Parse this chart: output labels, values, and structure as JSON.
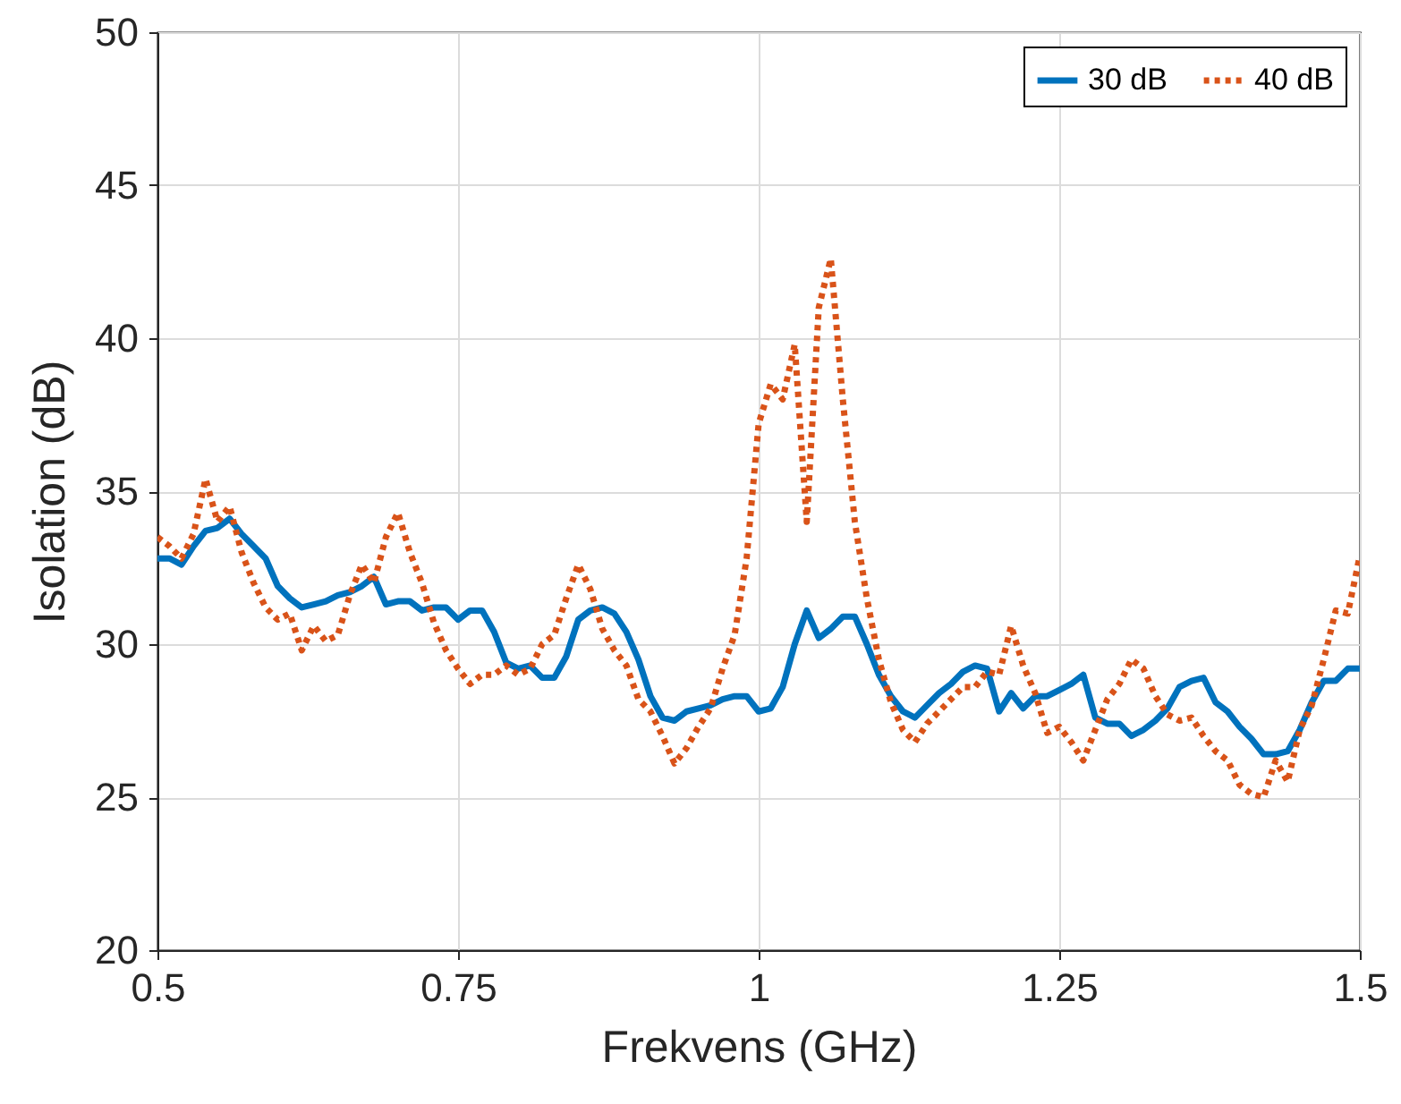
{
  "chart_data": {
    "type": "line",
    "xlabel": "Frekvens (GHz)",
    "ylabel": "Isolation (dB)",
    "x": [
      0.5,
      0.51,
      0.52,
      0.53,
      0.54,
      0.55,
      0.56,
      0.57,
      0.58,
      0.59,
      0.6,
      0.61,
      0.62,
      0.63,
      0.64,
      0.65,
      0.66,
      0.67,
      0.68,
      0.69,
      0.7,
      0.71,
      0.72,
      0.73,
      0.74,
      0.75,
      0.76,
      0.77,
      0.78,
      0.79,
      0.8,
      0.81,
      0.82,
      0.83,
      0.84,
      0.85,
      0.86,
      0.87,
      0.88,
      0.89,
      0.9,
      0.91,
      0.92,
      0.93,
      0.94,
      0.95,
      0.96,
      0.97,
      0.98,
      0.99,
      1.0,
      1.01,
      1.02,
      1.03,
      1.04,
      1.05,
      1.06,
      1.07,
      1.08,
      1.09,
      1.1,
      1.11,
      1.12,
      1.13,
      1.14,
      1.15,
      1.16,
      1.17,
      1.18,
      1.19,
      1.2,
      1.21,
      1.22,
      1.23,
      1.24,
      1.25,
      1.26,
      1.27,
      1.28,
      1.29,
      1.3,
      1.31,
      1.32,
      1.33,
      1.34,
      1.35,
      1.36,
      1.37,
      1.38,
      1.39,
      1.4,
      1.41,
      1.42,
      1.43,
      1.44,
      1.45,
      1.46,
      1.47,
      1.48,
      1.49,
      1.5
    ],
    "series": [
      {
        "name": "30 dB",
        "color": "#0072bd",
        "line_style": "solid",
        "values": [
          32.8,
          32.8,
          32.6,
          33.2,
          33.7,
          33.8,
          34.1,
          33.6,
          33.2,
          32.8,
          31.9,
          31.5,
          31.2,
          31.3,
          31.4,
          31.6,
          31.7,
          31.9,
          32.2,
          31.3,
          31.4,
          31.4,
          31.1,
          31.2,
          31.2,
          30.8,
          31.1,
          31.1,
          30.4,
          29.4,
          29.2,
          29.3,
          28.9,
          28.9,
          29.6,
          30.8,
          31.1,
          31.2,
          31.0,
          30.4,
          29.5,
          28.3,
          27.6,
          27.5,
          27.8,
          27.9,
          28.0,
          28.2,
          28.3,
          28.3,
          27.8,
          27.9,
          28.6,
          30.0,
          31.1,
          30.2,
          30.5,
          30.9,
          30.9,
          30.0,
          29.0,
          28.3,
          27.8,
          27.6,
          28.0,
          28.4,
          28.7,
          29.1,
          29.3,
          29.2,
          27.8,
          28.4,
          27.9,
          28.3,
          28.3,
          28.5,
          28.7,
          29.0,
          27.6,
          27.4,
          27.4,
          27.0,
          27.2,
          27.5,
          27.9,
          28.6,
          28.8,
          28.9,
          28.1,
          27.8,
          27.3,
          26.9,
          26.4,
          26.4,
          26.5,
          27.2,
          28.1,
          28.8,
          28.8,
          29.2,
          29.2
        ]
      },
      {
        "name": "40 dB",
        "color": "#d95319",
        "line_style": "dotted",
        "values": [
          33.5,
          33.2,
          32.8,
          33.6,
          35.4,
          34.0,
          34.5,
          33.0,
          32.0,
          31.2,
          30.8,
          31.0,
          29.8,
          30.6,
          30.1,
          30.3,
          31.6,
          32.6,
          32.0,
          33.5,
          34.3,
          33.0,
          32.0,
          30.7,
          29.8,
          29.2,
          28.7,
          29.0,
          29.0,
          29.3,
          29.0,
          29.2,
          30.0,
          30.3,
          31.5,
          32.6,
          31.8,
          30.5,
          29.8,
          29.3,
          28.2,
          27.8,
          27.0,
          26.1,
          26.6,
          27.3,
          27.9,
          29.2,
          30.3,
          32.8,
          37.2,
          38.5,
          38.0,
          39.8,
          34.0,
          41.0,
          42.6,
          38.0,
          34.0,
          31.5,
          29.5,
          28.1,
          27.2,
          26.8,
          27.4,
          27.8,
          28.2,
          28.6,
          28.6,
          29.1,
          29.0,
          30.6,
          29.3,
          28.4,
          27.1,
          27.3,
          26.8,
          26.2,
          27.2,
          28.2,
          28.7,
          29.5,
          29.2,
          28.3,
          27.7,
          27.5,
          27.6,
          27.0,
          26.5,
          26.2,
          25.4,
          25.1,
          25.0,
          26.2,
          25.5,
          27.2,
          28.0,
          29.5,
          31.1,
          31.0,
          32.9
        ]
      }
    ],
    "xlim": [
      0.5,
      1.5
    ],
    "xticks": [
      0.5,
      0.75,
      1,
      1.25,
      1.5
    ],
    "ylim": [
      20,
      50
    ],
    "yticks": [
      20,
      25,
      30,
      35,
      40,
      45,
      50
    ],
    "grid": true,
    "legend": "top right"
  }
}
